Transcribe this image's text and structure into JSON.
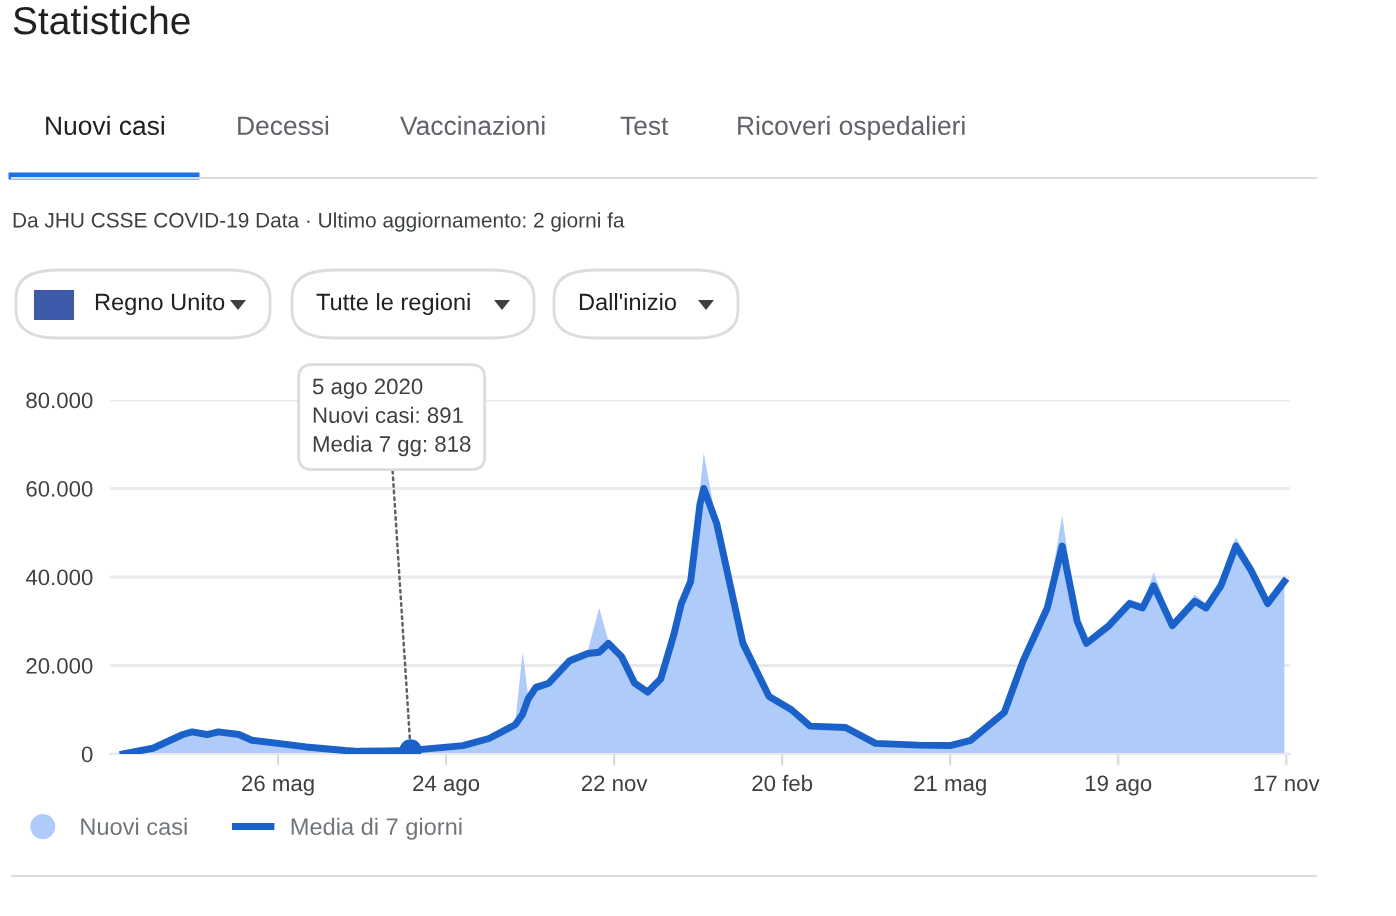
{
  "chart_data": {
    "type": "area",
    "title": "Statistiche",
    "annotations": [
      "Nuovi casi",
      "Decessi",
      "Vaccinazioni",
      "Test",
      "Ricoveri ospedalieri",
      "Da JHU CSSE COVID-19 Data · Ultimo aggiornamento: 2 giorni fa",
      "Regno Unito",
      "Tutte le regioni",
      "Dall'inizio",
      {
        "text": "5 ago 2020\nNuovi casi: 891\nMedia 7 gg: 818",
        "x": "2020-08-05",
        "y": 818
      }
    ],
    "x": [
      "2020-03-04",
      "2020-03-20",
      "2020-04-05",
      "2020-04-10",
      "2020-04-18",
      "2020-04-24",
      "2020-05-05",
      "2020-05-12",
      "2020-05-26",
      "2020-06-10",
      "2020-07-01",
      "2020-07-08",
      "2020-07-22",
      "2020-08-05",
      "2020-09-02",
      "2020-09-16",
      "2020-09-30",
      "2020-10-04",
      "2020-10-07",
      "2020-10-11",
      "2020-10-18",
      "2020-10-29",
      "2020-11-08",
      "2020-11-14",
      "2020-11-19",
      "2020-11-26",
      "2020-12-03",
      "2020-12-10",
      "2020-12-17",
      "2020-12-24",
      "2020-12-28",
      "2021-01-02",
      "2021-01-07",
      "2021-01-09",
      "2021-01-16",
      "2021-01-30",
      "2021-02-13",
      "2021-02-25",
      "2021-03-07",
      "2021-03-26",
      "2021-04-11",
      "2021-05-04",
      "2021-05-21",
      "2021-06-01",
      "2021-06-19",
      "2021-06-29",
      "2021-07-12",
      "2021-07-20",
      "2021-07-28",
      "2021-08-02",
      "2021-08-14",
      "2021-08-25",
      "2021-09-01",
      "2021-09-07",
      "2021-09-17",
      "2021-09-29",
      "2021-10-05",
      "2021-10-13",
      "2021-10-21",
      "2021-10-29",
      "2021-11-07",
      "2021-11-16"
    ],
    "series": [
      {
        "name": "Nuovi casi",
        "color": "#aecbfa",
        "values": [
          0,
          1300,
          4800,
          5200,
          4600,
          5100,
          4500,
          3200,
          2400,
          1600,
          800,
          600,
          700,
          891,
          2000,
          3600,
          7000,
          23000,
          13000,
          16000,
          16500,
          22000,
          23500,
          33000,
          25500,
          22500,
          16000,
          14500,
          18000,
          27000,
          35000,
          41000,
          60000,
          68000,
          52000,
          26000,
          13500,
          10500,
          6500,
          6200,
          2500,
          2100,
          2000,
          3200,
          9800,
          22000,
          34000,
          54000,
          30000,
          26000,
          30000,
          35000,
          34000,
          41000,
          30000,
          36000,
          34000,
          40000,
          49000,
          43000,
          34000,
          40000
        ]
      },
      {
        "name": "Media di 7 giorni",
        "type": "line",
        "color": "#1a62c9",
        "values": [
          0,
          1300,
          4400,
          5000,
          4400,
          5000,
          4400,
          3100,
          2400,
          1600,
          800,
          600,
          700,
          818,
          1900,
          3500,
          6600,
          9000,
          12500,
          15000,
          16000,
          21000,
          22700,
          23000,
          25000,
          22000,
          16000,
          14000,
          17000,
          27000,
          34000,
          39000,
          56500,
          60000,
          52000,
          25000,
          13000,
          10000,
          6300,
          6000,
          2400,
          2000,
          1900,
          3100,
          9400,
          21000,
          33000,
          47000,
          30000,
          25000,
          29000,
          34000,
          33000,
          38000,
          29000,
          34500,
          33000,
          38000,
          47000,
          41600,
          34000,
          39000
        ]
      }
    ],
    "xlim": [
      "2020-02-26",
      "2021-11-19"
    ],
    "xticks": [
      {
        "value": "2020-05-26",
        "label": "26 mag"
      },
      {
        "value": "2020-08-24",
        "label": "24 ago"
      },
      {
        "value": "2020-11-22",
        "label": "22 nov"
      },
      {
        "value": "2021-02-20",
        "label": "20 feb"
      },
      {
        "value": "2021-05-21",
        "label": "21 mag"
      },
      {
        "value": "2021-08-19",
        "label": "19 ago"
      },
      {
        "value": "2021-11-17",
        "label": "17 nov"
      }
    ],
    "ylim": [
      0,
      80000
    ],
    "yticks": [
      0,
      {
        "value": 20000,
        "label": "20.000"
      },
      {
        "value": 40000,
        "label": "40.000"
      },
      {
        "value": 60000,
        "label": "60.000"
      },
      {
        "value": 80000,
        "label": "80.000"
      }
    ],
    "grid": "y",
    "legend": "bottom left",
    "marker": "none",
    "line_style": "solid"
  }
}
